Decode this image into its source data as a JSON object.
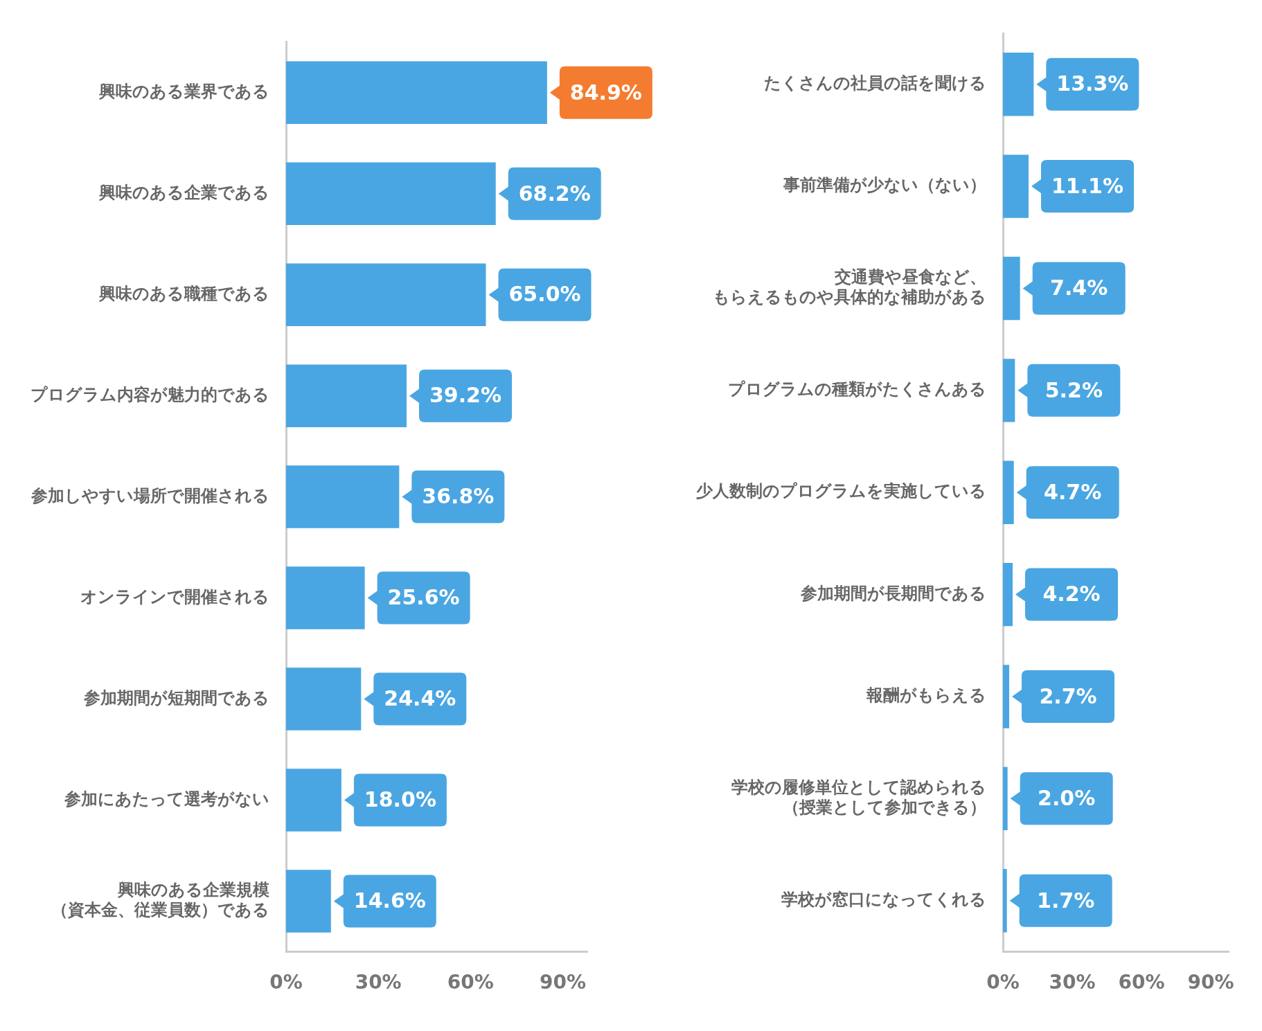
{
  "chart_data": [
    {
      "type": "bar",
      "orientation": "horizontal",
      "categories": [
        "興味のある業界である",
        "興味のある企業である",
        "興味のある職種である",
        "プログラム内容が魅力的である",
        "参加しやすい場所で開催される",
        "オンラインで開催される",
        "参加期間が短期間である",
        "参加にあたって選考がない",
        "興味のある企業規模（資本金、従業員数）である"
      ],
      "series": [
        {
          "color": "#4aa6e2",
          "values": [
            84.9,
            68.2,
            65.0,
            39.2,
            36.8,
            25.6,
            24.4,
            18.0,
            14.6
          ],
          "value_labels": [
            "84.9%",
            "68.2%",
            "65.0%",
            "39.2%",
            "36.8%",
            "25.6%",
            "24.4%",
            "18.0%",
            "14.6%"
          ]
        }
      ],
      "xlim": [
        0,
        98
      ],
      "xticks": [
        {
          "value": 0,
          "label": "0%"
        },
        {
          "value": 30,
          "label": "30%"
        },
        {
          "value": 60,
          "label": "60%"
        },
        {
          "value": 90,
          "label": "90%"
        }
      ],
      "grid": false,
      "legend": false
    },
    {
      "type": "bar",
      "orientation": "horizontal",
      "categories": [
        "たくさんの社員の話を聞ける",
        "事前準備が少ない（ない）",
        "交通費や昼食など、もらえるものや具体的な補助がある",
        "プログラムの種類がたくさんある",
        "少人数制のプログラムを実施している",
        "参加期間が長期間である",
        "報酬がもらえる",
        "学校の履修単位として認められる（授業として参加できる）",
        "学校が窓口になってくれる"
      ],
      "series": [
        {
          "color": "#4aa6e2",
          "values": [
            13.3,
            11.1,
            7.4,
            5.2,
            4.7,
            4.2,
            2.7,
            2.0,
            1.7
          ],
          "value_labels": [
            "13.3%",
            "11.1%",
            "7.4%",
            "5.2%",
            "4.7%",
            "4.2%",
            "2.7%",
            "2.0%",
            "1.7%"
          ]
        }
      ],
      "xlim": [
        0,
        98
      ],
      "xticks": [
        {
          "value": 0,
          "label": "0%"
        },
        {
          "value": 30,
          "label": "30%"
        },
        {
          "value": 60,
          "label": "60%"
        },
        {
          "value": 90,
          "label": "90%"
        }
      ],
      "grid": false,
      "legend": false
    }
  ]
}
